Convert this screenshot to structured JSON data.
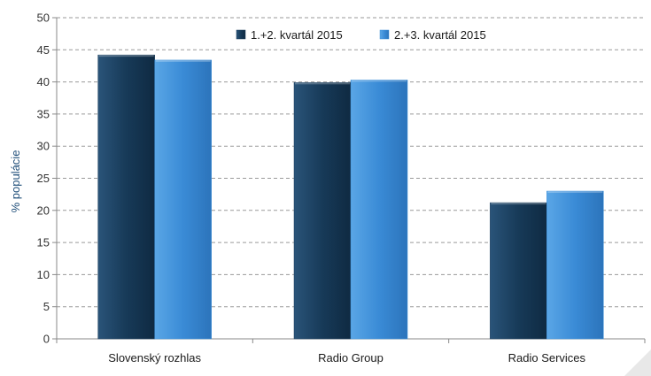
{
  "chart_data": {
    "type": "bar",
    "categories": [
      "Slovenský rozhlas",
      "Radio Group",
      "Radio Services"
    ],
    "series": [
      {
        "name": "1.+2. kvartál 2015",
        "values": [
          44.2,
          39.9,
          21.2
        ],
        "color": "#1c3f5e"
      },
      {
        "name": "2.+3. kvartál 2015",
        "values": [
          43.4,
          40.3,
          23.0
        ],
        "color": "#3d8fd8"
      }
    ],
    "xlabel": "",
    "ylabel": "% populácie",
    "ylim": [
      0,
      50
    ],
    "yticks": [
      0,
      5,
      10,
      15,
      20,
      25,
      30,
      35,
      40,
      45,
      50
    ],
    "grid": true,
    "legend_position": "top-right"
  }
}
